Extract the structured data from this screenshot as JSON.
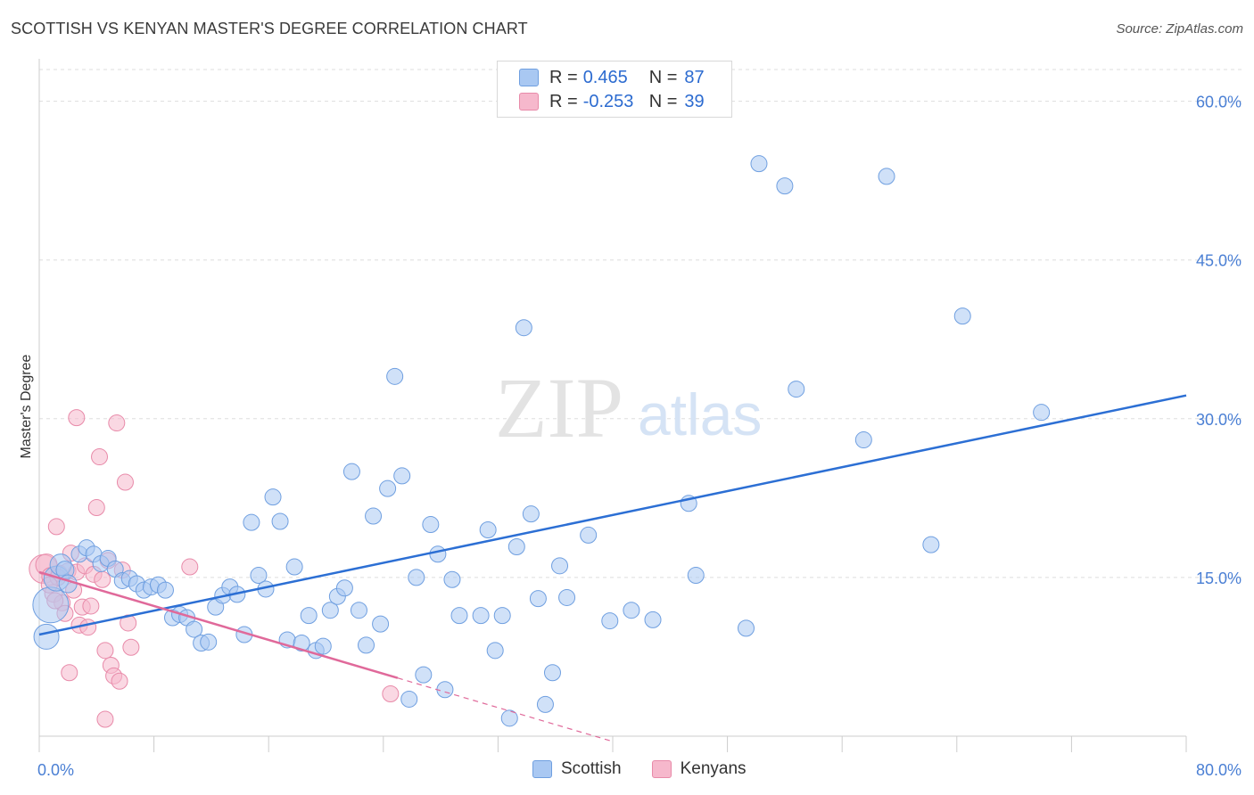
{
  "header": {
    "title": "SCOTTISH VS KENYAN MASTER'S DEGREE CORRELATION CHART",
    "source": "Source: ZipAtlas.com"
  },
  "watermark": {
    "zip": "ZIP",
    "atlas": "atlas"
  },
  "legend": {
    "rows": [
      {
        "r_label": "R =",
        "r_value": "0.465",
        "n_label": "N =",
        "n_value": "87",
        "color": "#a9c8f2"
      },
      {
        "r_label": "R =",
        "r_value": "-0.253",
        "n_label": "N =",
        "n_value": "39",
        "color": "#f6b8cc"
      }
    ]
  },
  "bottom_legend": {
    "scottish": "Scottish",
    "kenyans": "Kenyans"
  },
  "colors": {
    "scottish_fill": "#a9c8f2",
    "scottish_stroke": "#6f9fe0",
    "scottish_line": "#2c6fd4",
    "kenyan_fill": "#f6b8cc",
    "kenyan_stroke": "#e88aa9",
    "kenyan_line": "#e0699a",
    "tick_text": "#4a7fd4",
    "grid": "#dddddd"
  },
  "chart_data": {
    "type": "scatter",
    "title": "SCOTTISH VS KENYAN MASTER'S DEGREE CORRELATION CHART",
    "xlabel": "",
    "ylabel": "Master's Degree",
    "xlim": [
      0,
      80
    ],
    "ylim": [
      0,
      63
    ],
    "x_tick_labels": [
      "0.0%",
      "80.0%"
    ],
    "y_ticks": [
      15,
      30,
      45,
      60
    ],
    "y_tick_labels": [
      "15.0%",
      "30.0%",
      "45.0%",
      "60.0%"
    ],
    "grid": "horizontal dashed",
    "legend_position": "top-center",
    "series": [
      {
        "name": "Scottish",
        "R": 0.465,
        "N": 87,
        "trend": {
          "x0": 0,
          "y0": 9.6,
          "x1": 80,
          "y1": 32.2
        },
        "points": [
          [
            0.5,
            9.4,
            14
          ],
          [
            0.8,
            12.4,
            20
          ],
          [
            1.2,
            14.9,
            14
          ],
          [
            1.5,
            16.2,
            12
          ],
          [
            1.8,
            15.7,
            10
          ],
          [
            2.0,
            14.4,
            10
          ],
          [
            2.8,
            17.2,
            9
          ],
          [
            3.3,
            17.8,
            9
          ],
          [
            3.8,
            17.2,
            9
          ],
          [
            4.3,
            16.3,
            9
          ],
          [
            4.8,
            16.8,
            9
          ],
          [
            5.3,
            15.8,
            9
          ],
          [
            5.8,
            14.7,
            9
          ],
          [
            6.3,
            14.9,
            9
          ],
          [
            6.8,
            14.4,
            9
          ],
          [
            7.3,
            13.8,
            9
          ],
          [
            7.8,
            14.1,
            9
          ],
          [
            8.3,
            14.3,
            9
          ],
          [
            8.8,
            13.8,
            9
          ],
          [
            9.3,
            11.2,
            9
          ],
          [
            9.8,
            11.5,
            9
          ],
          [
            10.3,
            11.2,
            9
          ],
          [
            10.8,
            10.1,
            9
          ],
          [
            11.3,
            8.8,
            9
          ],
          [
            11.8,
            8.9,
            9
          ],
          [
            12.3,
            12.2,
            9
          ],
          [
            12.8,
            13.3,
            9
          ],
          [
            13.3,
            14.1,
            9
          ],
          [
            13.8,
            13.4,
            9
          ],
          [
            14.3,
            9.6,
            9
          ],
          [
            14.8,
            20.2,
            9
          ],
          [
            15.3,
            15.2,
            9
          ],
          [
            15.8,
            13.9,
            9
          ],
          [
            16.3,
            22.6,
            9
          ],
          [
            16.8,
            20.3,
            9
          ],
          [
            17.3,
            9.1,
            9
          ],
          [
            17.8,
            16.0,
            9
          ],
          [
            18.3,
            8.8,
            9
          ],
          [
            18.8,
            11.4,
            9
          ],
          [
            19.3,
            8.1,
            9
          ],
          [
            19.8,
            8.5,
            9
          ],
          [
            20.3,
            11.9,
            9
          ],
          [
            20.8,
            13.2,
            9
          ],
          [
            21.3,
            14.0,
            9
          ],
          [
            21.8,
            25.0,
            9
          ],
          [
            22.3,
            11.9,
            9
          ],
          [
            22.8,
            8.6,
            9
          ],
          [
            23.3,
            20.8,
            9
          ],
          [
            23.8,
            10.6,
            9
          ],
          [
            24.3,
            23.4,
            9
          ],
          [
            24.8,
            34.0,
            9
          ],
          [
            25.3,
            24.6,
            9
          ],
          [
            25.8,
            3.5,
            9
          ],
          [
            26.3,
            15.0,
            9
          ],
          [
            26.8,
            5.8,
            9
          ],
          [
            27.3,
            20.0,
            9
          ],
          [
            27.8,
            17.2,
            9
          ],
          [
            28.3,
            4.4,
            9
          ],
          [
            28.8,
            14.8,
            9
          ],
          [
            29.3,
            11.4,
            9
          ],
          [
            30.8,
            11.4,
            9
          ],
          [
            31.3,
            19.5,
            9
          ],
          [
            31.8,
            8.1,
            9
          ],
          [
            32.3,
            11.4,
            9
          ],
          [
            32.8,
            1.7,
            9
          ],
          [
            33.3,
            17.9,
            9
          ],
          [
            33.8,
            38.6,
            9
          ],
          [
            34.3,
            21.0,
            9
          ],
          [
            34.8,
            13.0,
            9
          ],
          [
            35.3,
            3.0,
            9
          ],
          [
            35.8,
            6.0,
            9
          ],
          [
            36.3,
            16.1,
            9
          ],
          [
            36.8,
            13.1,
            9
          ],
          [
            38.3,
            19.0,
            9
          ],
          [
            39.8,
            10.9,
            9
          ],
          [
            41.3,
            11.9,
            9
          ],
          [
            42.8,
            11.0,
            9
          ],
          [
            45.3,
            22.0,
            9
          ],
          [
            45.8,
            15.2,
            9
          ],
          [
            49.3,
            10.2,
            9
          ],
          [
            50.2,
            54.1,
            9
          ],
          [
            52.0,
            52.0,
            9
          ],
          [
            52.8,
            32.8,
            9
          ],
          [
            57.5,
            28.0,
            9
          ],
          [
            59.1,
            52.9,
            9
          ],
          [
            62.2,
            18.1,
            9
          ],
          [
            64.4,
            39.7,
            9
          ],
          [
            69.9,
            30.6,
            9
          ]
        ]
      },
      {
        "name": "Kenyans",
        "R": -0.253,
        "N": 39,
        "trend": {
          "x0": 0,
          "y0": 15.5,
          "x1": 25,
          "y1": 5.5,
          "dash_x1": 40,
          "dash_y1": -0.5
        },
        "points": [
          [
            0.3,
            15.8,
            16
          ],
          [
            0.5,
            16.2,
            12
          ],
          [
            0.8,
            15.1,
            10
          ],
          [
            1.0,
            13.5,
            10
          ],
          [
            1.2,
            19.8,
            9
          ],
          [
            1.4,
            15.4,
            9
          ],
          [
            1.6,
            12.6,
            9
          ],
          [
            1.8,
            11.6,
            9
          ],
          [
            2.0,
            15.6,
            9
          ],
          [
            2.2,
            17.3,
            9
          ],
          [
            2.4,
            13.8,
            9
          ],
          [
            2.6,
            15.5,
            9
          ],
          [
            2.8,
            10.5,
            9
          ],
          [
            3.0,
            12.2,
            9
          ],
          [
            3.2,
            16.1,
            9
          ],
          [
            3.4,
            10.3,
            9
          ],
          [
            3.6,
            12.3,
            9
          ],
          [
            3.8,
            15.3,
            9
          ],
          [
            4.0,
            21.6,
            9
          ],
          [
            4.2,
            26.4,
            9
          ],
          [
            4.4,
            14.8,
            9
          ],
          [
            4.6,
            8.1,
            9
          ],
          [
            4.8,
            16.6,
            9
          ],
          [
            5.0,
            6.7,
            9
          ],
          [
            5.2,
            5.7,
            9
          ],
          [
            5.4,
            29.6,
            9
          ],
          [
            5.6,
            5.2,
            9
          ],
          [
            5.8,
            15.7,
            9
          ],
          [
            6.0,
            24.0,
            9
          ],
          [
            6.2,
            10.7,
            9
          ],
          [
            6.4,
            8.4,
            9
          ],
          [
            2.1,
            6.0,
            9
          ],
          [
            2.6,
            30.1,
            9
          ],
          [
            4.6,
            1.6,
            9
          ],
          [
            1.3,
            15.0,
            9
          ],
          [
            0.7,
            14.3,
            9
          ],
          [
            10.5,
            16.0,
            9
          ],
          [
            24.5,
            4.0,
            9
          ],
          [
            1.1,
            12.8,
            9
          ]
        ]
      }
    ]
  }
}
